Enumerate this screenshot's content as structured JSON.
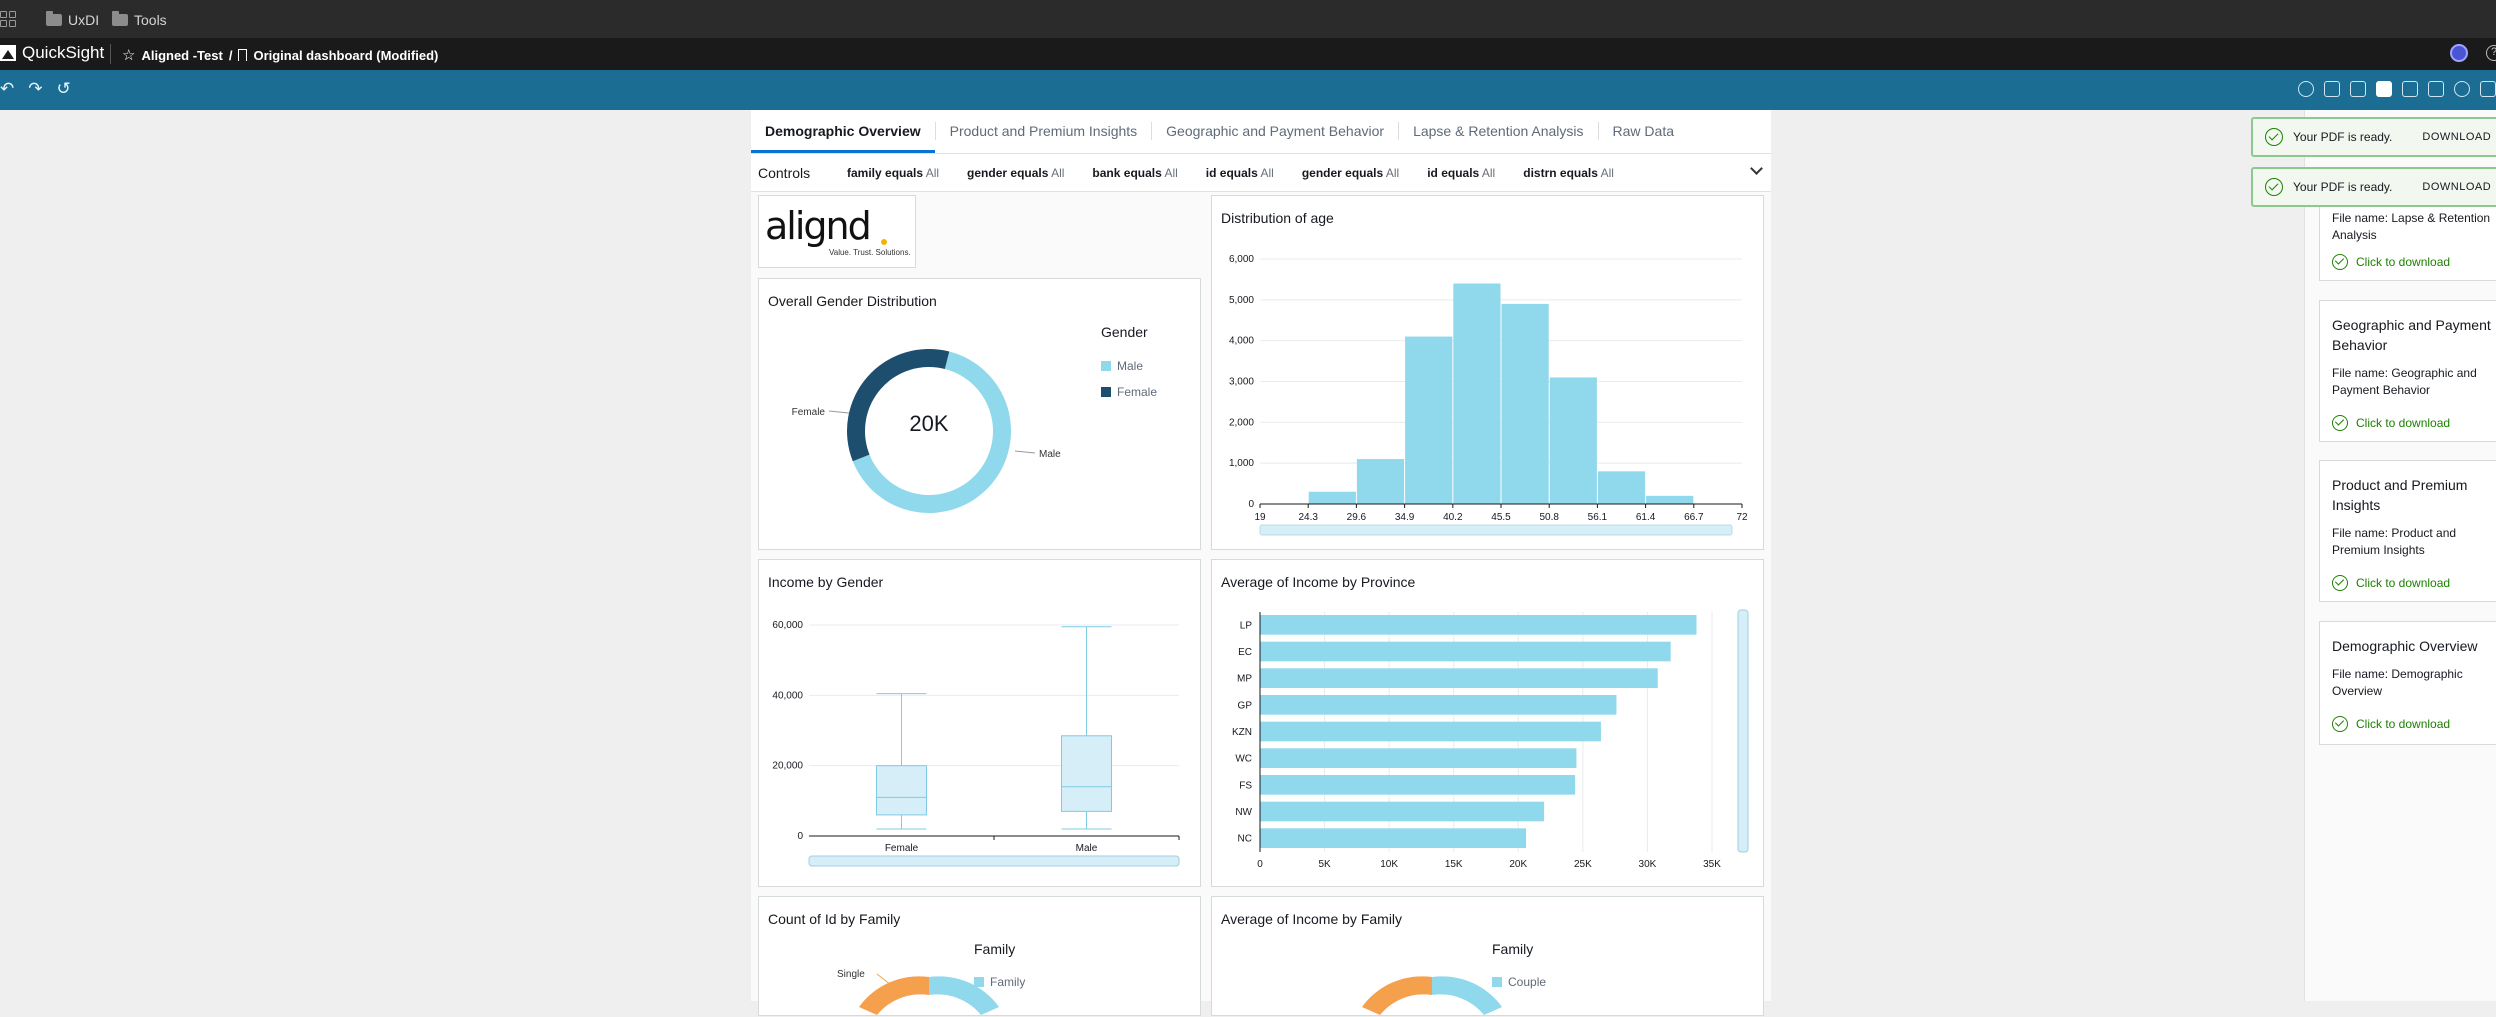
{
  "browser": {
    "bookmarks": [
      {
        "label": "UxDI",
        "icon": "folder-icon"
      },
      {
        "label": "Tools",
        "icon": "folder-icon"
      }
    ]
  },
  "app": {
    "name": "QuickSight",
    "breadcrumb_analysis": "Aligned -Test",
    "breadcrumb_sep": "/",
    "breadcrumb_dashboard": "Original dashboard (Modified)"
  },
  "sheet_tabs": [
    "Demographic Overview",
    "Product and Premium Insights",
    "Geographic and Payment Behavior",
    "Lapse & Retention Analysis",
    "Raw Data"
  ],
  "active_tab": "Demographic Overview",
  "controls": {
    "title": "Controls",
    "items": [
      {
        "field": "family equals",
        "value": "All"
      },
      {
        "field": "gender equals",
        "value": "All"
      },
      {
        "field": "bank equals",
        "value": "All"
      },
      {
        "field": "id equals",
        "value": "All"
      },
      {
        "field": "gender equals",
        "value": "All"
      },
      {
        "field": "id equals",
        "value": "All"
      },
      {
        "field": "distrn equals",
        "value": "All"
      }
    ]
  },
  "brand_logo": {
    "text": "alignd",
    "tagline": "Value. Trust. Solutions."
  },
  "colors": {
    "light_blue": "#90d8ec",
    "dark_blue": "#1e4e6e",
    "orange": "#f4a04c",
    "toolbar": "#1b6d94",
    "success": "#1d8102"
  },
  "chart_data": [
    {
      "type": "pie",
      "title": "Overall Gender Distribution",
      "center_label": "20K",
      "legend_title": "Gender",
      "labels": [
        "Male",
        "Female"
      ],
      "values": [
        0.65,
        0.35
      ],
      "colors": [
        "#90d8ec",
        "#1e4e6e"
      ]
    },
    {
      "type": "bar",
      "title": "Distribution of age",
      "x_ticks": [
        "19",
        "24.3",
        "29.6",
        "34.9",
        "40.2",
        "45.5",
        "50.8",
        "56.1",
        "61.4",
        "66.7",
        "72"
      ],
      "values": [
        0,
        300,
        1100,
        4100,
        5400,
        4900,
        3100,
        800,
        200,
        0
      ],
      "y_ticks": [
        "0",
        "1,000",
        "2,000",
        "3,000",
        "4,000",
        "5,000",
        "6,000"
      ],
      "ylim": [
        0,
        6000
      ]
    },
    {
      "type": "boxplot",
      "title": "Income by Gender",
      "categories": [
        "Female",
        "Male"
      ],
      "boxes": [
        {
          "min": 2000,
          "q1": 6000,
          "median": 11000,
          "q3": 20000,
          "max": 40500
        },
        {
          "min": 2000,
          "q1": 7000,
          "median": 14000,
          "q3": 28500,
          "max": 59500
        }
      ],
      "y_ticks": [
        "0",
        "20,000",
        "40,000",
        "60,000"
      ],
      "ylim": [
        0,
        60000
      ]
    },
    {
      "type": "bar",
      "orientation": "horizontal",
      "title": "Average of Income by Province",
      "categories": [
        "LP",
        "EC",
        "MP",
        "GP",
        "KZN",
        "WC",
        "FS",
        "NW",
        "NC"
      ],
      "values": [
        33800,
        31800,
        30800,
        27600,
        26400,
        24500,
        24400,
        22000,
        20600
      ],
      "x_ticks": [
        "0",
        "5K",
        "10K",
        "15K",
        "20K",
        "25K",
        "30K",
        "35K"
      ],
      "xlim": [
        0,
        35000
      ]
    },
    {
      "type": "pie",
      "title": "Count of Id by Family",
      "legend_title": "Family",
      "legend_items": [
        "Family"
      ],
      "annotations": [
        "Single"
      ],
      "colors": [
        "#90d8ec",
        "#f4a04c"
      ]
    },
    {
      "type": "pie",
      "title": "Average of Income by Family",
      "legend_title": "Family",
      "legend_items": [
        "Couple"
      ],
      "colors": [
        "#90d8ec",
        "#f4a04c"
      ]
    }
  ],
  "toasts": [
    {
      "message": "Your PDF is ready.",
      "action": "DOWNLOAD"
    },
    {
      "message": "Your PDF is ready.",
      "action": "DOWNLOAD"
    }
  ],
  "downloads": [
    {
      "title": "",
      "file": "File name:  Lapse & Retention Analysis",
      "action": "Click to download"
    },
    {
      "title": "Geographic and Payment Behavior",
      "file": "File name: Geographic and Payment Behavior",
      "action": "Click to download"
    },
    {
      "title": "Product and Premium Insights",
      "file": "File name: Product and Premium Insights",
      "action": "Click to download"
    },
    {
      "title": "Demographic Overview",
      "file": "File name: Demographic Overview",
      "action": "Click to download"
    }
  ]
}
